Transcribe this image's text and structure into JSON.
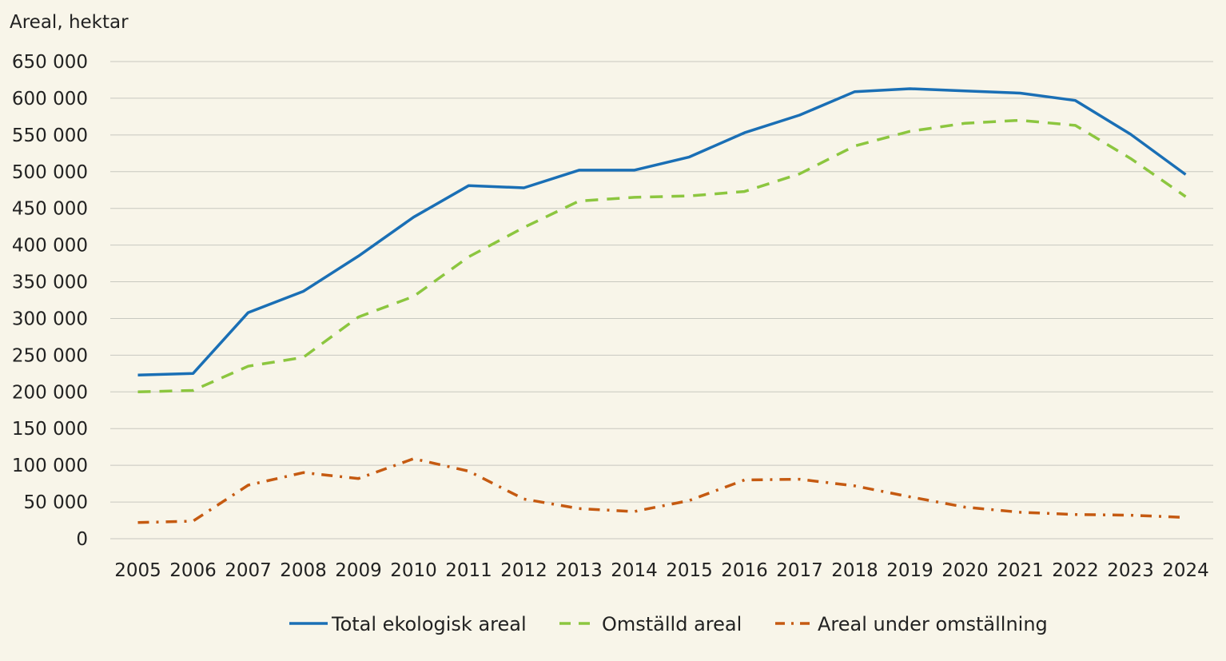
{
  "chart_data": {
    "type": "line",
    "ylabel": "Areal, hektar",
    "xlabel": "",
    "ylim": [
      0,
      650000
    ],
    "ytick_step": 50000,
    "ytick_labels": [
      "0",
      "50 000",
      "100 000",
      "150 000",
      "200 000",
      "250 000",
      "300 000",
      "350 000",
      "400 000",
      "450 000",
      "500 000",
      "550 000",
      "600 000",
      "650 000"
    ],
    "categories": [
      "2005",
      "2006",
      "2007",
      "2008",
      "2009",
      "2010",
      "2011",
      "2012",
      "2013",
      "2014",
      "2015",
      "2016",
      "2017",
      "2018",
      "2019",
      "2020",
      "2021",
      "2022",
      "2023",
      "2024"
    ],
    "grid": "horizontal",
    "legend_position": "bottom",
    "series": [
      {
        "name": "Total ekologisk areal",
        "color": "#1a6fb5",
        "style": "solid",
        "values": [
          223000,
          225000,
          308000,
          337000,
          385000,
          438000,
          481000,
          478000,
          502000,
          502000,
          520000,
          553000,
          577000,
          609000,
          613000,
          610000,
          607000,
          597000,
          551000,
          496000
        ]
      },
      {
        "name": "Omställd areal",
        "color": "#8cc63f",
        "style": "dashed",
        "values": [
          200000,
          202000,
          235000,
          247000,
          302000,
          330000,
          384000,
          424000,
          460000,
          465000,
          467000,
          473000,
          497000,
          535000,
          555000,
          566000,
          570000,
          563000,
          518000,
          466000
        ]
      },
      {
        "name": "Areal under omställning",
        "color": "#c55a11",
        "style": "dashdot",
        "values": [
          22000,
          24000,
          73000,
          90000,
          82000,
          109000,
          92000,
          54000,
          41000,
          37000,
          52000,
          80000,
          81000,
          72000,
          57000,
          43000,
          36000,
          33000,
          32000,
          29000
        ]
      }
    ]
  }
}
